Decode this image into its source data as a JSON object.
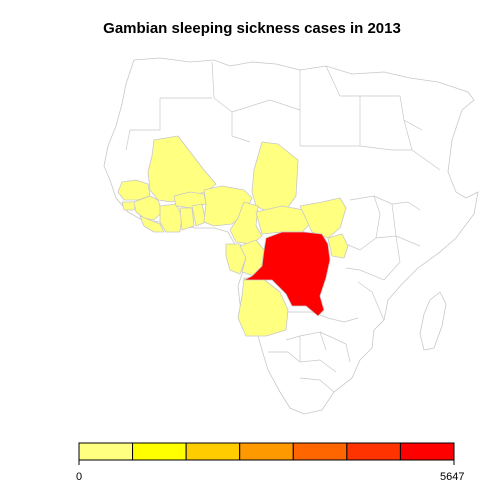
{
  "title": "Gambian sleeping sickness cases in 2013",
  "legend": {
    "min_label": "0",
    "max_label": "5647",
    "colors": [
      "#FFFF80",
      "#FFFF00",
      "#FFCC00",
      "#FF9900",
      "#FF6600",
      "#FF3300",
      "#FF0000"
    ]
  },
  "colors": {
    "no_data": "#FFFFFF",
    "low_cases": "#FFFF80",
    "highest_cases": "#FF0000",
    "border": "#C8C8C8"
  },
  "regions": {
    "highest": "Democratic Republic of the Congo",
    "low": [
      "Guinea",
      "Côte d'Ivoire",
      "Burkina Faso",
      "Ghana",
      "Nigeria",
      "Mali",
      "Chad",
      "Cameroon",
      "Central African Republic",
      "South Sudan",
      "Gabon",
      "Equatorial Guinea",
      "Republic of the Congo",
      "Angola",
      "Uganda",
      "Sierra Leone",
      "Liberia",
      "Togo",
      "Benin",
      "Guinea-Bissau",
      "Senegal",
      "Gambia"
    ]
  }
}
